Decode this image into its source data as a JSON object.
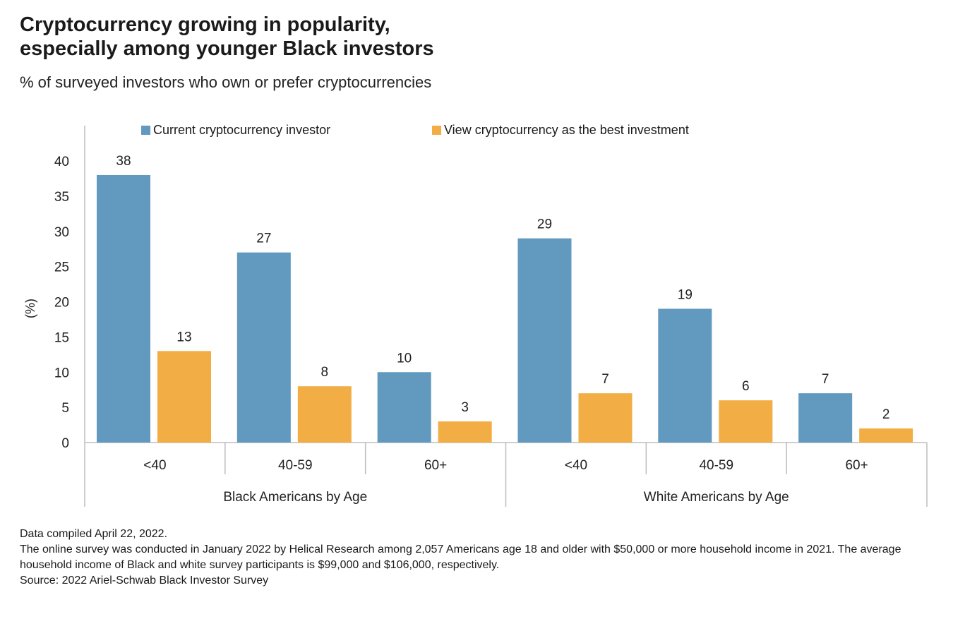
{
  "header": {
    "title_line1": "Cryptocurrency growing in popularity,",
    "title_line2": "especially among younger Black investors",
    "subtitle": "% of surveyed investors who own or prefer cryptocurrencies"
  },
  "chart_data": {
    "type": "bar",
    "ylabel": "(%)",
    "ylim": [
      0,
      40
    ],
    "yticks": [
      0,
      5,
      10,
      15,
      20,
      25,
      30,
      35,
      40
    ],
    "grid": false,
    "legend_position": "top",
    "groups": [
      {
        "label": "Black Americans by Age",
        "categories": [
          "<40",
          "40-59",
          "60+"
        ]
      },
      {
        "label": "White Americans by Age",
        "categories": [
          "<40",
          "40-59",
          "60+"
        ]
      }
    ],
    "categories": [
      "<40",
      "40-59",
      "60+",
      "<40",
      "40-59",
      "60+"
    ],
    "series": [
      {
        "name": "Current cryptocurrency investor",
        "color": "#6199bf",
        "values": [
          38,
          27,
          10,
          29,
          19,
          7
        ]
      },
      {
        "name": "View cryptocurrency as the best investment",
        "color": "#f2ae45",
        "values": [
          13,
          8,
          3,
          7,
          6,
          2
        ]
      }
    ]
  },
  "notes": {
    "line1": "Data compiled April 22, 2022.",
    "line2": "The online survey was conducted in January 2022 by Helical Research among 2,057 Americans age 18 and older with $50,000 or more household income in 2021. The average household income of Black and white survey participants is $99,000 and $106,000, respectively.",
    "line3": "Source: 2022 Ariel-Schwab Black Investor Survey"
  }
}
